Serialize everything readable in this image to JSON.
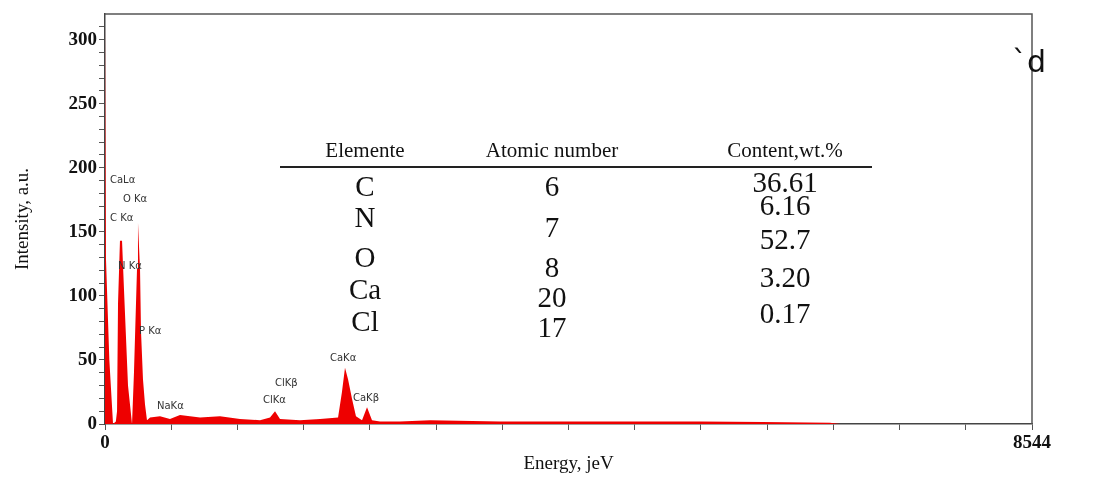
{
  "chart_data": {
    "type": "area",
    "xlabel": "Energy, jeV",
    "ylabel": "Intensity, a.u.",
    "x": [
      0,
      9,
      40,
      74,
      100,
      111,
      120,
      138,
      157,
      175,
      212,
      249,
      267,
      295,
      304,
      323,
      332,
      350,
      369,
      387,
      415,
      507,
      599,
      691,
      876,
      1060,
      1244,
      1429,
      1521,
      1567,
      1613,
      1797,
      1982,
      2148,
      2184,
      2212,
      2240,
      2276,
      2313,
      2369,
      2415,
      2461,
      2535,
      2719,
      2996,
      3641,
      4562,
      5484,
      6682,
      6775,
      8544
    ],
    "series": [
      {
        "color": "#ee0000",
        "values": [
          311,
          129,
          50,
          0,
          2,
          10,
          94,
          143,
          143,
          105,
          30,
          0,
          40,
          121,
          157,
          120,
          72,
          35,
          15,
          3,
          5,
          6,
          4,
          7,
          5,
          6,
          4,
          3,
          5,
          10,
          4,
          3,
          4,
          5,
          25,
          44,
          35,
          20,
          6,
          3,
          13,
          3,
          2,
          2,
          3,
          2,
          2,
          2,
          1,
          0,
          0
        ]
      }
    ],
    "xlim": [
      0,
      8544
    ],
    "ylim": [
      0,
      320
    ],
    "xticks": [
      0,
      {
        "value": 610,
        "label": null
      },
      {
        "value": 1220,
        "label": null
      },
      {
        "value": 1831,
        "label": null
      },
      {
        "value": 2441,
        "label": null
      },
      {
        "value": 3051,
        "label": null
      },
      {
        "value": 3662,
        "label": null
      },
      {
        "value": 4272,
        "label": null
      },
      {
        "value": 4882,
        "label": null
      },
      {
        "value": 5493,
        "label": null
      },
      {
        "value": 6103,
        "label": null
      },
      {
        "value": 6713,
        "label": null
      },
      {
        "value": 7323,
        "label": null
      },
      {
        "value": 7934,
        "label": null
      },
      8544
    ],
    "yticks": [
      0,
      {
        "value": 10,
        "label": null
      },
      {
        "value": 20,
        "label": null
      },
      {
        "value": 30,
        "label": null
      },
      {
        "value": 40,
        "label": null
      },
      50,
      {
        "value": 60,
        "label": null
      },
      {
        "value": 70,
        "label": null
      },
      {
        "value": 80,
        "label": null
      },
      {
        "value": 90,
        "label": null
      },
      100,
      {
        "value": 110,
        "label": null
      },
      {
        "value": 120,
        "label": null
      },
      {
        "value": 130,
        "label": null
      },
      {
        "value": 140,
        "label": null
      },
      150,
      {
        "value": 160,
        "label": null
      },
      {
        "value": 170,
        "label": null
      },
      {
        "value": 180,
        "label": null
      },
      {
        "value": 190,
        "label": null
      },
      200,
      {
        "value": 210,
        "label": null
      },
      {
        "value": 220,
        "label": null
      },
      {
        "value": 230,
        "label": null
      },
      {
        "value": 240,
        "label": null
      },
      250,
      {
        "value": 260,
        "label": null
      },
      {
        "value": 270,
        "label": null
      },
      {
        "value": 280,
        "label": null
      },
      {
        "value": 290,
        "label": null
      },
      300,
      {
        "value": 310,
        "label": null
      }
    ],
    "grid": false,
    "legend": false,
    "annotations": [
      "CaLα",
      "O Kα",
      "C Kα",
      "N Kα",
      "P Kα",
      "NaKα",
      "ClKβ",
      "ClKα",
      "CaKα",
      "CaKβ",
      "`d",
      "Elemente",
      "Atomic number",
      "Content,wt.%",
      "C",
      "6",
      "36.61",
      "N",
      "7",
      "6.16",
      "O",
      "8",
      "52.7",
      "Ca",
      "20",
      "3.20",
      "Cl",
      "17",
      "0.17"
    ]
  }
}
